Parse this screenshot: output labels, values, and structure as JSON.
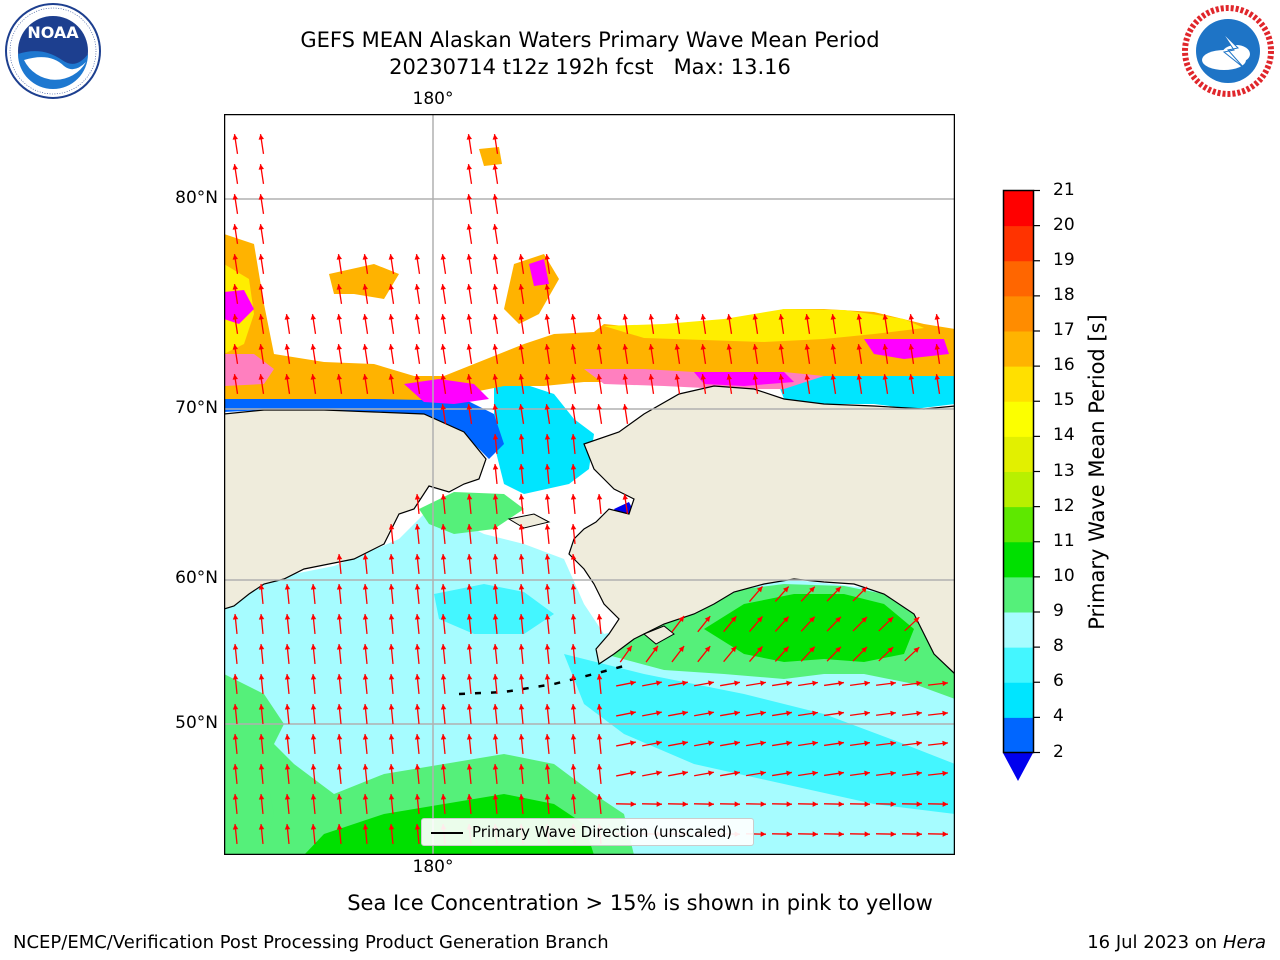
{
  "header": {
    "title_line1": "GEFS MEAN Alaskan Waters Primary Wave Mean Period",
    "title_line2": "20230714 t12z 192h fcst   Max: 13.16"
  },
  "logos": {
    "left": "NOAA",
    "left_ring_text": "NATIONAL OCEANIC AND ATMOSPHERIC ADMINISTRATION · U.S. DEPARTMENT OF COMMERCE",
    "right_ring_text": "NATIONAL WEATHER SERVICE"
  },
  "map": {
    "lon_label_top": "180°",
    "lon_label_bottom": "180°",
    "lat_labels": [
      "80°N",
      "70°N",
      "60°N",
      "50°N"
    ],
    "legend_label": "Primary Wave Direction (unscaled)",
    "land_color": "#efecdc",
    "coast_color": "#000000",
    "arrow_color": "#ff0000",
    "ice_colors": [
      "#ff00ff",
      "#ff7fbf",
      "#ffb300",
      "#ffee00"
    ]
  },
  "colorbar": {
    "title": "Primary Wave Mean Period [s]",
    "tick_labels": [
      "21",
      "20",
      "19",
      "18",
      "17",
      "16",
      "15",
      "14",
      "13",
      "12",
      "11",
      "10",
      "9",
      "8",
      "6",
      "4",
      "2"
    ],
    "levels": [
      2,
      4,
      6,
      8,
      9,
      10,
      11,
      12,
      13,
      14,
      15,
      16,
      17,
      18,
      19,
      20,
      21
    ],
    "colors": [
      "#0066ff",
      "#00e5ff",
      "#44f6ff",
      "#a6fcff",
      "#55f07a",
      "#00e000",
      "#5ee800",
      "#b8f000",
      "#e2f000",
      "#fcff00",
      "#ffe000",
      "#ffb300",
      "#ff8c00",
      "#ff6600",
      "#ff3300",
      "#ff0000"
    ],
    "under_color": "#0000ee"
  },
  "footer": {
    "ice_note": "Sea Ice Concentration > 15% is shown in pink to yellow",
    "left": "NCEP/EMC/Verification Post Processing Product Generation Branch",
    "right_date": "16 Jul 2023 on ",
    "right_host": "Hera"
  }
}
